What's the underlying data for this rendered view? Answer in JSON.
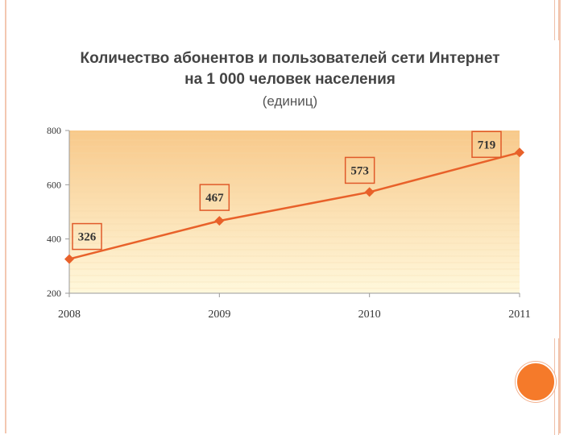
{
  "colors": {
    "line": "#e8612a",
    "label_border": "#e05a2a",
    "plot_top": "#f8c98a",
    "plot_bottom": "#fff8dc",
    "grid": "#f4d7a8",
    "accent": "#f57a2a"
  },
  "chart_data": {
    "type": "line",
    "title_lines": [
      "Количество абонентов и пользователей сети Интернет",
      "на 1 000 человек населения"
    ],
    "subtitle": "(единиц)",
    "x": [
      "2008",
      "2009",
      "2010",
      "2011"
    ],
    "values": [
      326,
      467,
      573,
      719
    ],
    "data_labels": [
      "326",
      "467",
      "573",
      "719"
    ],
    "yticks": [
      "200",
      "400",
      "600",
      "800"
    ],
    "ylim": [
      200,
      800
    ],
    "grid": true,
    "legend": "none"
  }
}
